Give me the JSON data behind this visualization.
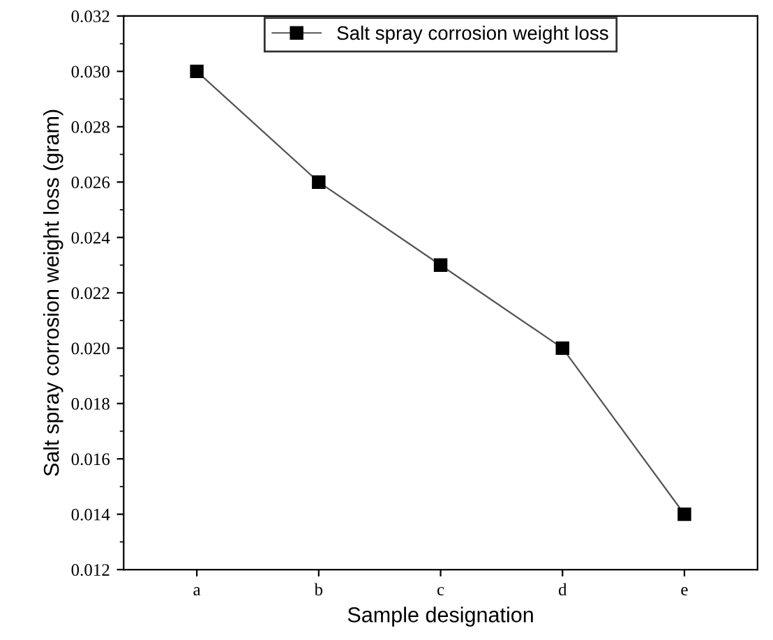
{
  "chart_data": {
    "type": "line",
    "xlabel": "Sample designation",
    "ylabel": "Salt spray corrosion weight loss (gram)",
    "categories": [
      "a",
      "b",
      "c",
      "d",
      "e"
    ],
    "series": [
      {
        "name": "Salt spray corrosion weight loss",
        "color": "#000000",
        "values": [
          0.03,
          0.026,
          0.023,
          0.02,
          0.014
        ]
      }
    ],
    "ylim": [
      0.012,
      0.032
    ],
    "yticks": [
      {
        "value": 0.012,
        "label": "0.012"
      },
      {
        "value": 0.014,
        "label": "0.014"
      },
      {
        "value": 0.016,
        "label": "0.016"
      },
      {
        "value": 0.018,
        "label": "0.018"
      },
      {
        "value": 0.02,
        "label": "0.020"
      },
      {
        "value": 0.022,
        "label": "0.022"
      },
      {
        "value": 0.024,
        "label": "0.024"
      },
      {
        "value": 0.026,
        "label": "0.026"
      },
      {
        "value": 0.028,
        "label": "0.028"
      },
      {
        "value": 0.03,
        "label": "0.030"
      },
      {
        "value": 0.032,
        "label": "0.032"
      }
    ],
    "marker": "square",
    "line_style": "solid",
    "legend": "top",
    "grid": false
  }
}
